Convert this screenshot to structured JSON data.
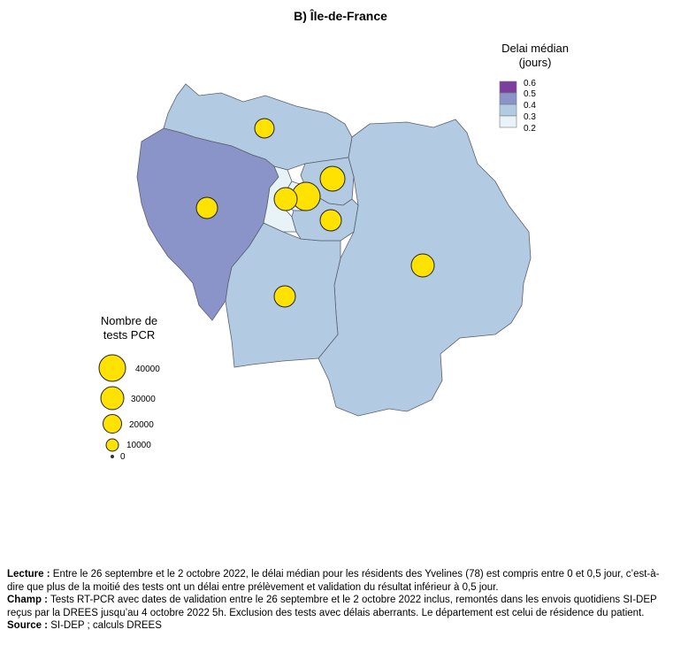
{
  "title": "B) Île-de-France",
  "color_legend": {
    "title_line1": "Delai médian",
    "title_line2": "(jours)",
    "entries": [
      {
        "label": "0.6",
        "color": "#7b3f9e"
      },
      {
        "label": "0.5",
        "color": "#8a94c8"
      },
      {
        "label": "0.4",
        "color": "#b3cbe2"
      },
      {
        "label": "0.3",
        "color": "#e8f3f8"
      },
      {
        "label": "0.2",
        "color": ""
      }
    ]
  },
  "size_legend": {
    "title_line1": "Nombre de",
    "title_line2": "tests PCR",
    "entries": [
      {
        "label": "40000",
        "value": 40000
      },
      {
        "label": "30000",
        "value": 30000
      },
      {
        "label": "20000",
        "value": 20000
      },
      {
        "label": "10000",
        "value": 10000
      },
      {
        "label": "0",
        "value": 0
      }
    ]
  },
  "colors": {
    "yvelines": "#8a94c8",
    "default": "#b3cbe2",
    "paris": "#e8f3f8",
    "bubble": "#ffe200",
    "border": "#5a6070"
  },
  "notes": {
    "lecture_label": "Lecture :",
    "lecture_text": " Entre le 26 septembre et le 2 octobre 2022, le délai médian pour les résidents des Yvelines (78) est compris entre 0 et 0,5 jour, c’est-à-dire que plus de la moitié des tests ont un délai entre prélèvement et validation du résultat inférieur à 0,5 jour.",
    "champ_label": "Champ :",
    "champ_text": " Tests RT-PCR avec dates de validation entre le 26 septembre et le 2 octobre 2022 inclus, remontés dans les envois quotidiens SI-DEP reçus par la DREES jusqu’au 4 octobre 2022 5h. Exclusion des tests avec délais aberrants. Le département est celui de résidence du patient.",
    "source_label": "Source :",
    "source_text": " SI-DEP ; calculs DREES"
  }
}
